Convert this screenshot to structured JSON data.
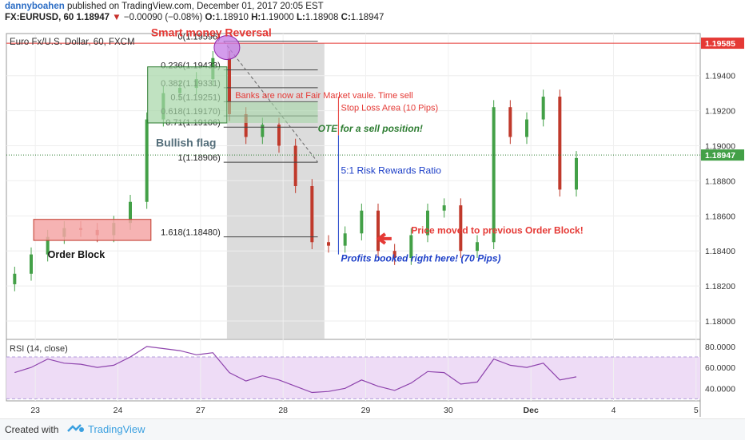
{
  "header": {
    "author": "dannyboahen",
    "published": " published on TradingView.com, December 01, 2017 20:05 EST",
    "symbol": "FX:EURUSD, 60",
    "last": "1.18947",
    "change": "−0.00090 (−0.08%)",
    "o_label": "O:",
    "o_value": "1.18910",
    "h_label": "H:",
    "h_value": "1.19000",
    "l_label": "L:",
    "l_value": "1.18908",
    "c_label": "C:",
    "c_value": "1.18947"
  },
  "chart_title": "Euro Fx/U.S. Dollar, 60, FXCM",
  "price_axis": {
    "ticks": [
      1.18,
      1.182,
      1.184,
      1.186,
      1.188,
      1.19,
      1.192,
      1.194
    ],
    "tick_labels": [
      "1.18000",
      "1.18200",
      "1.18400",
      "1.18600",
      "1.18800",
      "1.19000",
      "1.19200",
      "1.19400"
    ],
    "ylim": [
      1.179,
      1.1964
    ],
    "current_label": "1.18947",
    "current_value": 1.18947,
    "redline_label": "1.19585",
    "redline_value": 1.19585
  },
  "time_axis": {
    "labels": [
      "23",
      "24",
      "27",
      "28",
      "29",
      "30",
      "Dec",
      "4",
      "5"
    ],
    "positions": [
      0.3,
      1.3,
      2.3,
      3.3,
      4.3,
      5.3,
      6.3,
      7.3,
      8.3
    ]
  },
  "fib_levels": [
    {
      "label": "0(1.19596)",
      "value": 1.19596
    },
    {
      "label": "0.236(1.19433)",
      "value": 1.19433
    },
    {
      "label": "0.382(1.19331)",
      "value": 1.19331
    },
    {
      "label": "0.5(1.19251)",
      "value": 1.19251
    },
    {
      "label": "0.618(1.19170)",
      "value": 1.1917
    },
    {
      "label": "0.71(1.19106)",
      "value": 1.19106
    },
    {
      "label": "1(1.18906)",
      "value": 1.18906
    },
    {
      "label": "1.618(1.18480)",
      "value": 1.1848
    }
  ],
  "annotations": {
    "smart_money": "Smart money Reversal",
    "banks": "Banks are now at Fair Market vaule. Time sell",
    "stop_loss": "Stop Loss Area (10 Pips)",
    "ote": "OTE for a sell position!",
    "risk": "5:1 Risk Rewards Ratio",
    "bullish_flag": "Bullish flag",
    "order_block": "Order Block",
    "price_moved": "Price moved to previous Order Block!",
    "profits": "Profits booked right here! (70 Pips)"
  },
  "rsi": {
    "label": "RSI (14, close)",
    "ticks": [
      40,
      60,
      80
    ],
    "tick_labels": [
      "40.0000",
      "60.0000",
      "80.0000"
    ],
    "ylim": [
      28,
      86
    ],
    "band": [
      30,
      70
    ]
  },
  "colors": {
    "up": "#43a047",
    "down": "#c0392b",
    "rsi": "#8e44ad",
    "rsi_band": "#eedcf6",
    "accent_red": "#e53935",
    "axis_text": "#333333"
  },
  "footer": {
    "created_with": "Created with",
    "brand": "TradingView"
  },
  "chart_data": {
    "type": "candlestick",
    "title": "Euro Fx/U.S. Dollar, 60, FXCM",
    "series": [
      {
        "name": "EURUSD",
        "x": [
          0.05,
          0.25,
          0.45,
          0.65,
          0.85,
          1.05,
          1.25,
          1.45,
          1.65,
          1.85,
          2.05,
          2.25,
          2.45,
          2.65,
          2.85,
          3.05,
          3.25,
          3.45,
          3.65,
          3.85,
          4.05,
          4.25,
          4.45,
          4.65,
          4.85,
          5.05,
          5.25,
          5.45,
          5.65,
          5.85,
          6.05,
          6.25,
          6.45,
          6.65,
          6.85
        ],
        "close": [
          1.1827,
          1.1838,
          1.1848,
          1.1853,
          1.1852,
          1.1849,
          1.1856,
          1.1868,
          1.1915,
          1.193,
          1.1933,
          1.1938,
          1.195,
          1.1918,
          1.1905,
          1.1912,
          1.19,
          1.1877,
          1.1845,
          1.1843,
          1.185,
          1.1863,
          1.184,
          1.1836,
          1.1849,
          1.1863,
          1.1866,
          1.184,
          1.1845,
          1.1922,
          1.1905,
          1.1915,
          1.1928,
          1.1875,
          1.1893
        ]
      }
    ],
    "rsi": [
      55,
      60,
      68,
      64,
      63,
      60,
      62,
      70,
      80,
      78,
      76,
      72,
      74,
      55,
      47,
      52,
      48,
      42,
      36,
      37,
      40,
      48,
      42,
      38,
      45,
      56,
      55,
      44,
      46,
      68,
      62,
      60,
      64,
      48,
      51
    ]
  }
}
